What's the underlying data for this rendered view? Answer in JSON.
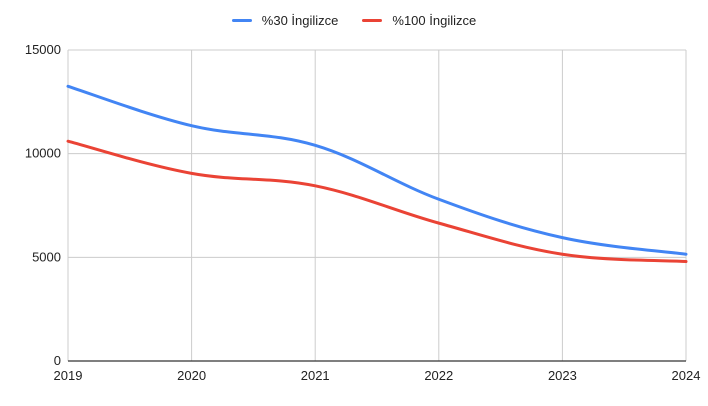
{
  "chart_data": {
    "type": "line",
    "categories": [
      "2019",
      "2020",
      "2021",
      "2022",
      "2023",
      "2024"
    ],
    "series": [
      {
        "name": "%30 İngilizce",
        "color": "#4285f4",
        "values": [
          13250,
          11350,
          10400,
          7800,
          5950,
          5150
        ]
      },
      {
        "name": "%100 İngilizce",
        "color": "#ea4335",
        "values": [
          10600,
          9050,
          8450,
          6650,
          5150,
          4800
        ]
      }
    ],
    "ylim": [
      0,
      15000
    ],
    "yticks": [
      "0",
      "5000",
      "10000",
      "15000"
    ],
    "grid": true,
    "legend_position": "top"
  }
}
